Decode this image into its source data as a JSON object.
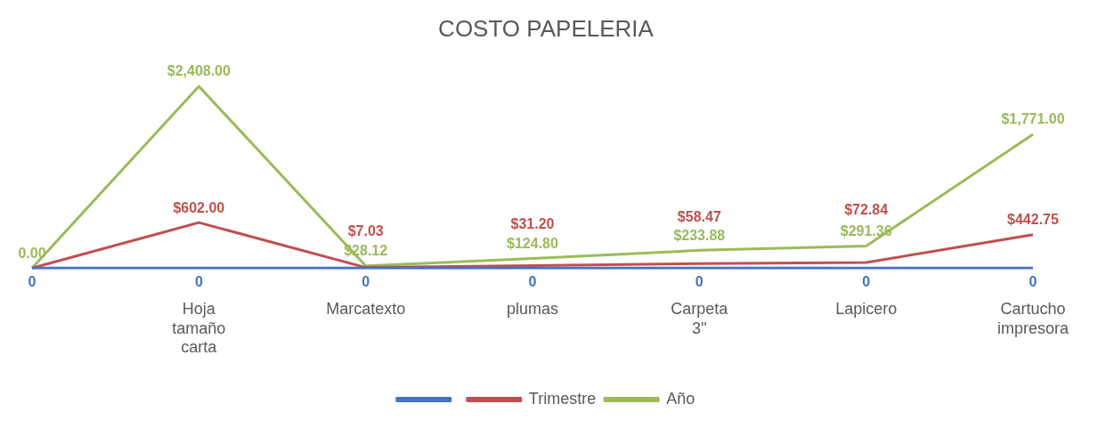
{
  "chart_data": {
    "type": "line",
    "title": "COSTO PAPELERIA",
    "categories": [
      null,
      "Hoja tamaño carta",
      "Marcatexto",
      "plumas",
      "Carpeta 3\"",
      "Lapicero",
      "Cartucho impresora"
    ],
    "series": [
      {
        "color": "#4472c4",
        "values": [
          0,
          0,
          0,
          0,
          0,
          0,
          0
        ],
        "value_labels": [
          "0",
          "0",
          "0",
          "0",
          "0",
          "0",
          "0"
        ]
      },
      {
        "name": "Trimestre",
        "color": "#c0504d",
        "values": [
          0,
          602,
          7.03,
          31.2,
          58.47,
          72.84,
          442.75
        ],
        "value_labels": [
          null,
          "$602.00",
          "$7.03",
          "$31.20",
          "$58.47",
          "$72.84",
          "$442.75"
        ]
      },
      {
        "name": "Año",
        "color": "#9bbb59",
        "values": [
          0,
          2408,
          28.12,
          124.8,
          233.88,
          291.36,
          1771
        ],
        "value_labels": [
          "0.00",
          "$2,408.00",
          "$28.12",
          "$124.80",
          "$233.88",
          "$291.36",
          "$1,771.00"
        ]
      }
    ],
    "legend": "bottom",
    "grid": false,
    "tick_labels": "x"
  }
}
